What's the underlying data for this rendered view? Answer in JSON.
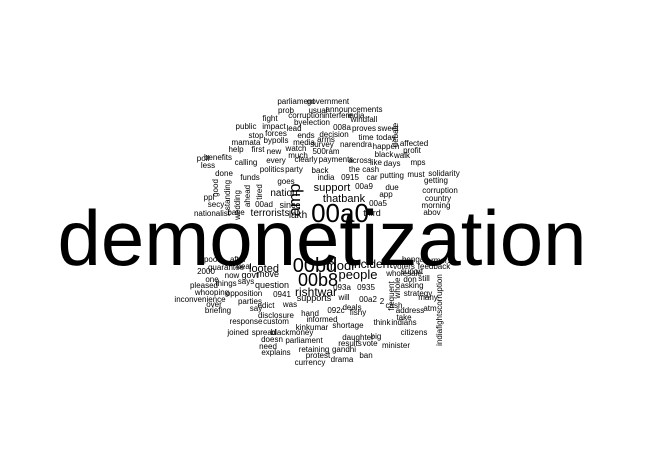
{
  "cloud": {
    "text_color": "#000000",
    "background": "#ffffff",
    "words": [
      {
        "text": "demonetization",
        "weight": 1.0
      },
      {
        "text": "00a0",
        "weight": 0.28
      },
      {
        "text": "00bd",
        "weight": 0.22
      },
      {
        "text": "00b8",
        "weight": 0.2
      },
      {
        "text": "amp",
        "weight": 0.19
      },
      {
        "text": "modi",
        "weight": 0.14
      },
      {
        "text": "people",
        "weight": 0.13
      },
      {
        "text": "incident",
        "weight": 0.12
      },
      {
        "text": "rishtwar",
        "weight": 0.12
      },
      {
        "text": "thatbank",
        "weight": 0.11
      },
      {
        "text": "looted",
        "weight": 0.1
      },
      {
        "text": "support",
        "weight": 0.1
      },
      {
        "text": "nation",
        "weight": 0.1
      },
      {
        "text": "lakh",
        "weight": 0.1
      },
      {
        "text": "terrorists",
        "weight": 0.1
      },
      {
        "text": "third",
        "weight": 0.09
      },
      {
        "text": "since",
        "weight": 0.09
      },
      {
        "text": "supports",
        "weight": 0.09
      },
      {
        "text": "question",
        "weight": 0.09
      },
      {
        "text": "move",
        "weight": 0.09
      },
      {
        "text": "govt",
        "weight": 0.09
      },
      {
        "text": "goes",
        "weight": 0.08
      },
      {
        "text": "india",
        "weight": 0.08
      },
      {
        "text": "0915",
        "weight": 0.08
      },
      {
        "text": "informed",
        "weight": 0.08
      },
      {
        "text": "funds",
        "weight": 0.08
      },
      {
        "text": "0941",
        "weight": 0.08
      },
      {
        "text": "00ad",
        "weight": 0.08
      },
      {
        "text": "00a5",
        "weight": 0.08
      },
      {
        "text": "00a9",
        "weight": 0.08
      },
      {
        "text": "00a2",
        "weight": 0.08
      },
      {
        "text": "will",
        "weight": 0.08
      },
      {
        "text": "was",
        "weight": 0.08
      },
      {
        "text": "hand",
        "weight": 0.08
      },
      {
        "text": "edict",
        "weight": 0.08
      },
      {
        "text": "kinkumar",
        "weight": 0.07
      },
      {
        "text": "shortage",
        "weight": 0.07
      },
      {
        "text": "0935",
        "weight": 0.07
      },
      {
        "text": "093a",
        "weight": 0.07
      },
      {
        "text": "092c",
        "weight": 0.07
      },
      {
        "text": "disclosure",
        "weight": 0.07
      },
      {
        "text": "the cash",
        "weight": 0.07
      },
      {
        "text": "putting",
        "weight": 0.07
      },
      {
        "text": "car",
        "weight": 0.07
      },
      {
        "text": "due",
        "weight": 0.07
      },
      {
        "text": "app",
        "weight": 0.07
      },
      {
        "text": "payments",
        "weight": 0.07
      },
      {
        "text": "politics",
        "weight": 0.07
      },
      {
        "text": "party",
        "weight": 0.07
      },
      {
        "text": "back",
        "weight": 0.07
      },
      {
        "text": "every",
        "weight": 0.07
      },
      {
        "text": "clearly",
        "weight": 0.07
      },
      {
        "text": "across",
        "weight": 0.07
      },
      {
        "text": "like",
        "weight": 0.07
      },
      {
        "text": "days",
        "weight": 0.07
      },
      {
        "text": "must",
        "weight": 0.07
      },
      {
        "text": "getting",
        "weight": 0.07
      },
      {
        "text": "corruption",
        "weight": 0.07
      },
      {
        "text": "country",
        "weight": 0.07
      },
      {
        "text": "morning",
        "weight": 0.07
      },
      {
        "text": "abov",
        "weight": 0.07
      },
      {
        "text": "solidarity",
        "weight": 0.07
      },
      {
        "text": "mps",
        "weight": 0.07
      },
      {
        "text": "walk",
        "weight": 0.07
      },
      {
        "text": "black",
        "weight": 0.07
      },
      {
        "text": "narendra",
        "weight": 0.07
      },
      {
        "text": "happen",
        "weight": 0.07
      },
      {
        "text": "500ram",
        "weight": 0.07
      },
      {
        "text": "survey",
        "weight": 0.07
      },
      {
        "text": "watch",
        "weight": 0.07
      },
      {
        "text": "much",
        "weight": 0.07
      },
      {
        "text": "new",
        "weight": 0.07
      },
      {
        "text": "first",
        "weight": 0.07
      },
      {
        "text": "help",
        "weight": 0.07
      },
      {
        "text": "mamata",
        "weight": 0.07
      },
      {
        "text": "poll",
        "weight": 0.07
      },
      {
        "text": "benefits",
        "weight": 0.07
      },
      {
        "text": "less",
        "weight": 0.07
      },
      {
        "text": "calling",
        "weight": 0.07
      },
      {
        "text": "done",
        "weight": 0.07
      },
      {
        "text": "good",
        "weight": 0.07
      },
      {
        "text": "standing",
        "weight": 0.07
      },
      {
        "text": "ahead",
        "weight": 0.07
      },
      {
        "text": "tired",
        "weight": 0.07
      },
      {
        "text": "ppl",
        "weight": 0.07
      },
      {
        "text": "secy",
        "weight": 0.07
      },
      {
        "text": "nationalist",
        "weight": 0.07
      },
      {
        "text": "base",
        "weight": 0.07
      },
      {
        "text": "wedding",
        "weight": 0.07
      },
      {
        "text": "poor",
        "weight": 0.07
      },
      {
        "text": "after",
        "weight": 0.07
      },
      {
        "text": "guarantee",
        "weight": 0.07
      },
      {
        "text": "deal",
        "weight": 0.07
      },
      {
        "text": "2000",
        "weight": 0.07
      },
      {
        "text": "now",
        "weight": 0.07
      },
      {
        "text": "says",
        "weight": 0.07
      },
      {
        "text": "one",
        "weight": 0.07
      },
      {
        "text": "pleased",
        "weight": 0.07
      },
      {
        "text": "things",
        "weight": 0.07
      },
      {
        "text": "whooping",
        "weight": 0.07
      },
      {
        "text": "opposition",
        "weight": 0.07
      },
      {
        "text": "inconvenience",
        "weight": 0.07
      },
      {
        "text": "over",
        "weight": 0.07
      },
      {
        "text": "parties",
        "weight": 0.07
      },
      {
        "text": "briefing",
        "weight": 0.07
      },
      {
        "text": "say",
        "weight": 0.07
      },
      {
        "text": "response",
        "weight": 0.07
      },
      {
        "text": "custom",
        "weight": 0.07
      },
      {
        "text": "joined",
        "weight": 0.07
      },
      {
        "text": "spread",
        "weight": 0.07
      },
      {
        "text": "blackmoney",
        "weight": 0.07
      },
      {
        "text": "doesn",
        "weight": 0.07
      },
      {
        "text": "need",
        "weight": 0.07
      },
      {
        "text": "parliament",
        "weight": 0.07
      },
      {
        "text": "explains",
        "weight": 0.07
      },
      {
        "text": "retaining",
        "weight": 0.07
      },
      {
        "text": "gandhi",
        "weight": 0.07
      },
      {
        "text": "protest",
        "weight": 0.07
      },
      {
        "text": "currency",
        "weight": 0.07
      },
      {
        "text": "drama",
        "weight": 0.07
      },
      {
        "text": "results",
        "weight": 0.07
      },
      {
        "text": "vote",
        "weight": 0.07
      },
      {
        "text": "minister",
        "weight": 0.07
      },
      {
        "text": "ban",
        "weight": 0.07
      },
      {
        "text": "daughter",
        "weight": 0.07
      },
      {
        "text": "big",
        "weight": 0.07
      },
      {
        "text": "think",
        "weight": 0.07
      },
      {
        "text": "indians",
        "weight": 0.07
      },
      {
        "text": "citizens",
        "weight": 0.07
      },
      {
        "text": "many",
        "weight": 0.07
      },
      {
        "text": "atm",
        "weight": 0.07
      },
      {
        "text": "address",
        "weight": 0.07
      },
      {
        "text": "take",
        "weight": 0.07
      },
      {
        "text": "strategy",
        "weight": 0.07
      },
      {
        "text": "asking",
        "weight": 0.07
      },
      {
        "text": "still",
        "weight": 0.07
      },
      {
        "text": "don",
        "weight": 0.07
      },
      {
        "text": "suport",
        "weight": 0.07
      },
      {
        "text": "wholesale",
        "weight": 0.07
      },
      {
        "text": "voters",
        "weight": 0.07
      },
      {
        "text": "feedback",
        "weight": 0.07
      },
      {
        "text": "bengal",
        "weight": 0.07
      },
      {
        "text": "farmers",
        "weight": 0.07
      },
      {
        "text": "indiafightscorruption",
        "weight": 0.07
      },
      {
        "text": "frequent",
        "weight": 0.07
      },
      {
        "text": "whole",
        "weight": 0.07
      },
      {
        "text": "fishy",
        "weight": 0.07
      },
      {
        "text": "deals",
        "weight": 0.07
      },
      {
        "text": "cash",
        "weight": 0.07
      },
      {
        "text": "2",
        "weight": 0.07
      },
      {
        "text": "parliament",
        "weight": 0.07
      },
      {
        "text": "government",
        "weight": 0.07
      },
      {
        "text": "usual",
        "weight": 0.07
      },
      {
        "text": "announcements",
        "weight": 0.07
      },
      {
        "text": "prob",
        "weight": 0.07
      },
      {
        "text": "corruption",
        "weight": 0.07
      },
      {
        "text": "interfere",
        "weight": 0.07
      },
      {
        "text": "india",
        "weight": 0.07
      },
      {
        "text": "windfall",
        "weight": 0.07
      },
      {
        "text": "fight",
        "weight": 0.07
      },
      {
        "text": "byelection",
        "weight": 0.07
      },
      {
        "text": "public",
        "weight": 0.07
      },
      {
        "text": "impact",
        "weight": 0.07
      },
      {
        "text": "lead",
        "weight": 0.07
      },
      {
        "text": "008a",
        "weight": 0.07
      },
      {
        "text": "proves",
        "weight": 0.07
      },
      {
        "text": "sweet",
        "weight": 0.07
      },
      {
        "text": "stop",
        "weight": 0.07
      },
      {
        "text": "forces",
        "weight": 0.07
      },
      {
        "text": "ends",
        "weight": 0.07
      },
      {
        "text": "decision",
        "weight": 0.07
      },
      {
        "text": "time",
        "weight": 0.07
      },
      {
        "text": "today",
        "weight": 0.07
      },
      {
        "text": "bypolls",
        "weight": 0.07
      },
      {
        "text": "media",
        "weight": 0.07
      },
      {
        "text": "arms",
        "weight": 0.07
      },
      {
        "text": "affected",
        "weight": 0.07
      },
      {
        "text": "profit",
        "weight": 0.07
      },
      {
        "text": "debate",
        "weight": 0.07
      }
    ]
  }
}
